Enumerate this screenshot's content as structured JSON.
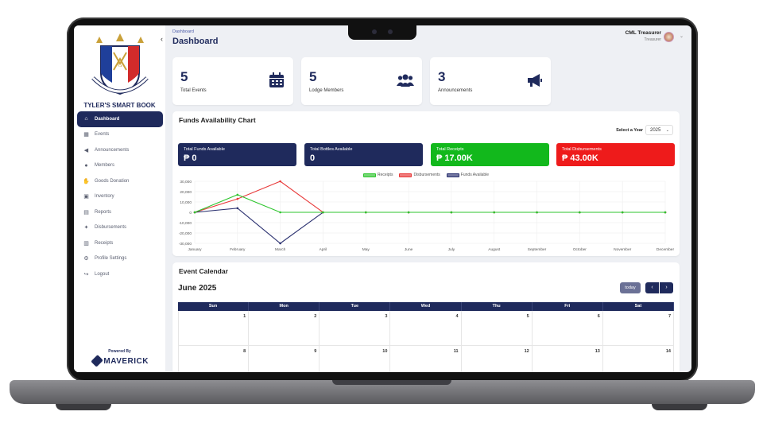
{
  "sidebar": {
    "brand": "TYLER'S SMART BOOK",
    "items": [
      {
        "label": "Dashboard",
        "icon": "home-icon",
        "active": true
      },
      {
        "label": "Events",
        "icon": "table-icon"
      },
      {
        "label": "Announcements",
        "icon": "megaphone-icon"
      },
      {
        "label": "Members",
        "icon": "users-icon"
      },
      {
        "label": "Goods Donation",
        "icon": "handshake-icon"
      },
      {
        "label": "Inventory",
        "icon": "box-icon"
      },
      {
        "label": "Reports",
        "icon": "file-icon"
      },
      {
        "label": "Disbursements",
        "icon": "hand-money-icon"
      },
      {
        "label": "Receipts",
        "icon": "receipt-icon"
      },
      {
        "label": "Profile Settings",
        "icon": "user-gear-icon"
      },
      {
        "label": "Logout",
        "icon": "logout-icon"
      }
    ],
    "powered_by": "Powered By",
    "powered_brand": "MAVERICK"
  },
  "header": {
    "breadcrumb": "Dashboard",
    "title": "Dashboard",
    "user_name": "CML Treasurer",
    "user_role": "Treasurer"
  },
  "stats": [
    {
      "value": "5",
      "label": "Total Events",
      "icon": "calendar-icon"
    },
    {
      "value": "5",
      "label": "Lodge Members",
      "icon": "users-icon"
    },
    {
      "value": "3",
      "label": "Announcements",
      "icon": "megaphone-icon"
    }
  ],
  "funds": {
    "title": "Funds Availability Chart",
    "year_label": "Select a Year",
    "year_value": "2025",
    "cards": [
      {
        "label": "Total Funds Available",
        "value": "₱ 0",
        "color": "#1f2a5c"
      },
      {
        "label": "Total Bottles Available",
        "value": "0",
        "color": "#1f2a5c"
      },
      {
        "label": "Total Receipts",
        "value": "₱ 17.00K",
        "color": "#12b81c"
      },
      {
        "label": "Total Disbursements",
        "value": "₱ 43.00K",
        "color": "#ee1b1b"
      }
    ]
  },
  "chart_data": {
    "type": "line",
    "x": [
      "January",
      "February",
      "March",
      "April",
      "May",
      "June",
      "July",
      "August",
      "September",
      "October",
      "November",
      "December"
    ],
    "yticks": [
      "30,000",
      "20,000",
      "10,000",
      "0",
      "-10,000",
      "-20,000",
      "-30,000"
    ],
    "ylim": [
      -30000,
      30000
    ],
    "grid": true,
    "legend_placement": "top-center",
    "series": [
      {
        "name": "Receipts",
        "color": "#2ec52e",
        "values": [
          0,
          17000,
          0,
          0,
          0,
          0,
          0,
          0,
          0,
          0,
          0,
          0
        ]
      },
      {
        "name": "Disbursements",
        "color": "#e83a3a",
        "values": [
          0,
          13000,
          30000,
          0,
          0,
          0,
          0,
          0,
          0,
          0,
          0,
          0
        ]
      },
      {
        "name": "Funds Available",
        "color": "#2b3170",
        "values": [
          0,
          4000,
          -30000,
          0,
          0,
          0,
          0,
          0,
          0,
          0,
          0,
          0
        ]
      }
    ]
  },
  "calendar": {
    "title": "Event Calendar",
    "month": "June 2025",
    "today_label": "today",
    "prev": "‹",
    "next": "›",
    "days": [
      "Sun",
      "Mon",
      "Tue",
      "Wed",
      "Thu",
      "Fri",
      "Sat"
    ],
    "weeks": [
      [
        "1",
        "2",
        "3",
        "4",
        "5",
        "6",
        "7"
      ],
      [
        "8",
        "9",
        "10",
        "11",
        "12",
        "13",
        "14"
      ]
    ]
  }
}
